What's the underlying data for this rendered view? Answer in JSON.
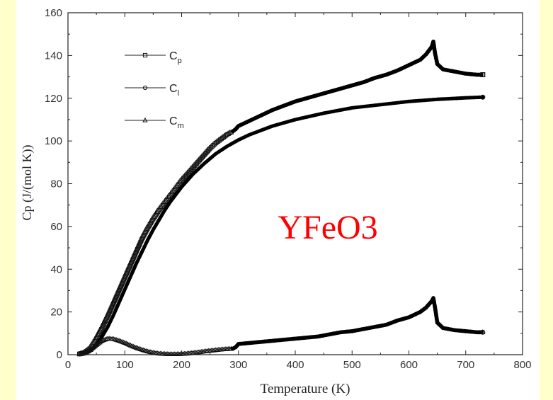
{
  "chart_data": {
    "type": "scatter",
    "title": "",
    "xlabel": "Temperature (K)",
    "ylabel": "Cp (J/(mol K))",
    "xlim": [
      0,
      800
    ],
    "ylim": [
      0,
      160
    ],
    "x_ticks": [
      0,
      100,
      200,
      300,
      400,
      500,
      600,
      700,
      800
    ],
    "y_ticks": [
      0,
      20,
      40,
      60,
      80,
      100,
      120,
      140,
      160
    ],
    "grid": false,
    "legend_position": "top-left",
    "annotation": "YFeO3",
    "annotation_color": "#FF0000",
    "series": [
      {
        "name": "Cp",
        "legend_main": "C",
        "legend_sub": "p",
        "marker": "square",
        "points": [
          [
            20,
            0.4
          ],
          [
            30,
            1.2
          ],
          [
            40,
            3.2
          ],
          [
            50,
            7.5
          ],
          [
            60,
            12.5
          ],
          [
            70,
            18
          ],
          [
            80,
            24
          ],
          [
            90,
            30
          ],
          [
            100,
            36
          ],
          [
            110,
            42
          ],
          [
            120,
            48
          ],
          [
            130,
            54
          ],
          [
            140,
            59
          ],
          [
            150,
            63.5
          ],
          [
            160,
            67.5
          ],
          [
            170,
            71
          ],
          [
            180,
            74.5
          ],
          [
            190,
            78
          ],
          [
            200,
            81.5
          ],
          [
            210,
            84.5
          ],
          [
            220,
            87.5
          ],
          [
            230,
            90.5
          ],
          [
            240,
            93.5
          ],
          [
            250,
            96.5
          ],
          [
            260,
            99
          ],
          [
            270,
            101
          ],
          [
            280,
            103
          ],
          [
            290,
            104.5
          ],
          [
            295,
            105.5
          ],
          [
            300,
            107
          ],
          [
            320,
            109.5
          ],
          [
            340,
            112
          ],
          [
            360,
            114.5
          ],
          [
            380,
            116.5
          ],
          [
            400,
            118.5
          ],
          [
            420,
            120
          ],
          [
            440,
            121.5
          ],
          [
            460,
            123
          ],
          [
            480,
            124.5
          ],
          [
            500,
            126
          ],
          [
            520,
            127.5
          ],
          [
            540,
            129.5
          ],
          [
            560,
            131
          ],
          [
            580,
            133
          ],
          [
            600,
            135.5
          ],
          [
            620,
            138
          ],
          [
            630,
            140.5
          ],
          [
            640,
            144
          ],
          [
            643,
            146.5
          ],
          [
            646,
            141
          ],
          [
            650,
            136
          ],
          [
            660,
            133.5
          ],
          [
            680,
            132.5
          ],
          [
            700,
            131.5
          ],
          [
            720,
            131
          ],
          [
            730,
            131
          ]
        ]
      },
      {
        "name": "Cl",
        "legend_main": "C",
        "legend_sub": "l",
        "marker": "circle",
        "points": [
          [
            20,
            0.2
          ],
          [
            30,
            0.6
          ],
          [
            40,
            2
          ],
          [
            50,
            4.5
          ],
          [
            60,
            8.5
          ],
          [
            70,
            13
          ],
          [
            80,
            18.5
          ],
          [
            90,
            24.5
          ],
          [
            100,
            30.5
          ],
          [
            110,
            36.5
          ],
          [
            120,
            42.5
          ],
          [
            130,
            48
          ],
          [
            140,
            53.5
          ],
          [
            150,
            58.5
          ],
          [
            160,
            63
          ],
          [
            170,
            67.5
          ],
          [
            180,
            71.5
          ],
          [
            190,
            75
          ],
          [
            200,
            78.5
          ],
          [
            220,
            84.5
          ],
          [
            240,
            89.5
          ],
          [
            260,
            94
          ],
          [
            280,
            97.5
          ],
          [
            300,
            100.5
          ],
          [
            320,
            103
          ],
          [
            340,
            105
          ],
          [
            360,
            107
          ],
          [
            380,
            108.5
          ],
          [
            400,
            110
          ],
          [
            450,
            113
          ],
          [
            500,
            115.5
          ],
          [
            550,
            117
          ],
          [
            600,
            118.5
          ],
          [
            650,
            119.5
          ],
          [
            700,
            120.2
          ],
          [
            730,
            120.5
          ]
        ]
      },
      {
        "name": "Cm",
        "legend_main": "C",
        "legend_sub": "m",
        "marker": "triangle",
        "points": [
          [
            20,
            0.1
          ],
          [
            30,
            0.7
          ],
          [
            40,
            2.2
          ],
          [
            50,
            4.5
          ],
          [
            60,
            6.5
          ],
          [
            70,
            7.5
          ],
          [
            80,
            7.3
          ],
          [
            90,
            6.5
          ],
          [
            100,
            5.5
          ],
          [
            110,
            4.3
          ],
          [
            120,
            3.2
          ],
          [
            130,
            2.3
          ],
          [
            140,
            1.5
          ],
          [
            150,
            0.9
          ],
          [
            160,
            0.5
          ],
          [
            170,
            0.3
          ],
          [
            180,
            0.2
          ],
          [
            190,
            0.2
          ],
          [
            200,
            0.3
          ],
          [
            210,
            0.5
          ],
          [
            220,
            0.8
          ],
          [
            230,
            1.1
          ],
          [
            240,
            1.5
          ],
          [
            250,
            1.8
          ],
          [
            260,
            2.1
          ],
          [
            270,
            2.4
          ],
          [
            280,
            2.6
          ],
          [
            290,
            2.8
          ],
          [
            295,
            3.5
          ],
          [
            300,
            5
          ],
          [
            320,
            5.5
          ],
          [
            340,
            6
          ],
          [
            360,
            6.5
          ],
          [
            380,
            7
          ],
          [
            400,
            7.5
          ],
          [
            420,
            8
          ],
          [
            440,
            8.5
          ],
          [
            460,
            9.5
          ],
          [
            480,
            10.5
          ],
          [
            500,
            11
          ],
          [
            520,
            12
          ],
          [
            540,
            13
          ],
          [
            560,
            14
          ],
          [
            580,
            16
          ],
          [
            600,
            17.5
          ],
          [
            620,
            20
          ],
          [
            630,
            22
          ],
          [
            640,
            25
          ],
          [
            643,
            26.5
          ],
          [
            646,
            22
          ],
          [
            650,
            15
          ],
          [
            660,
            12.5
          ],
          [
            680,
            11.5
          ],
          [
            700,
            11
          ],
          [
            720,
            10.5
          ],
          [
            730,
            10.5
          ]
        ]
      }
    ]
  }
}
